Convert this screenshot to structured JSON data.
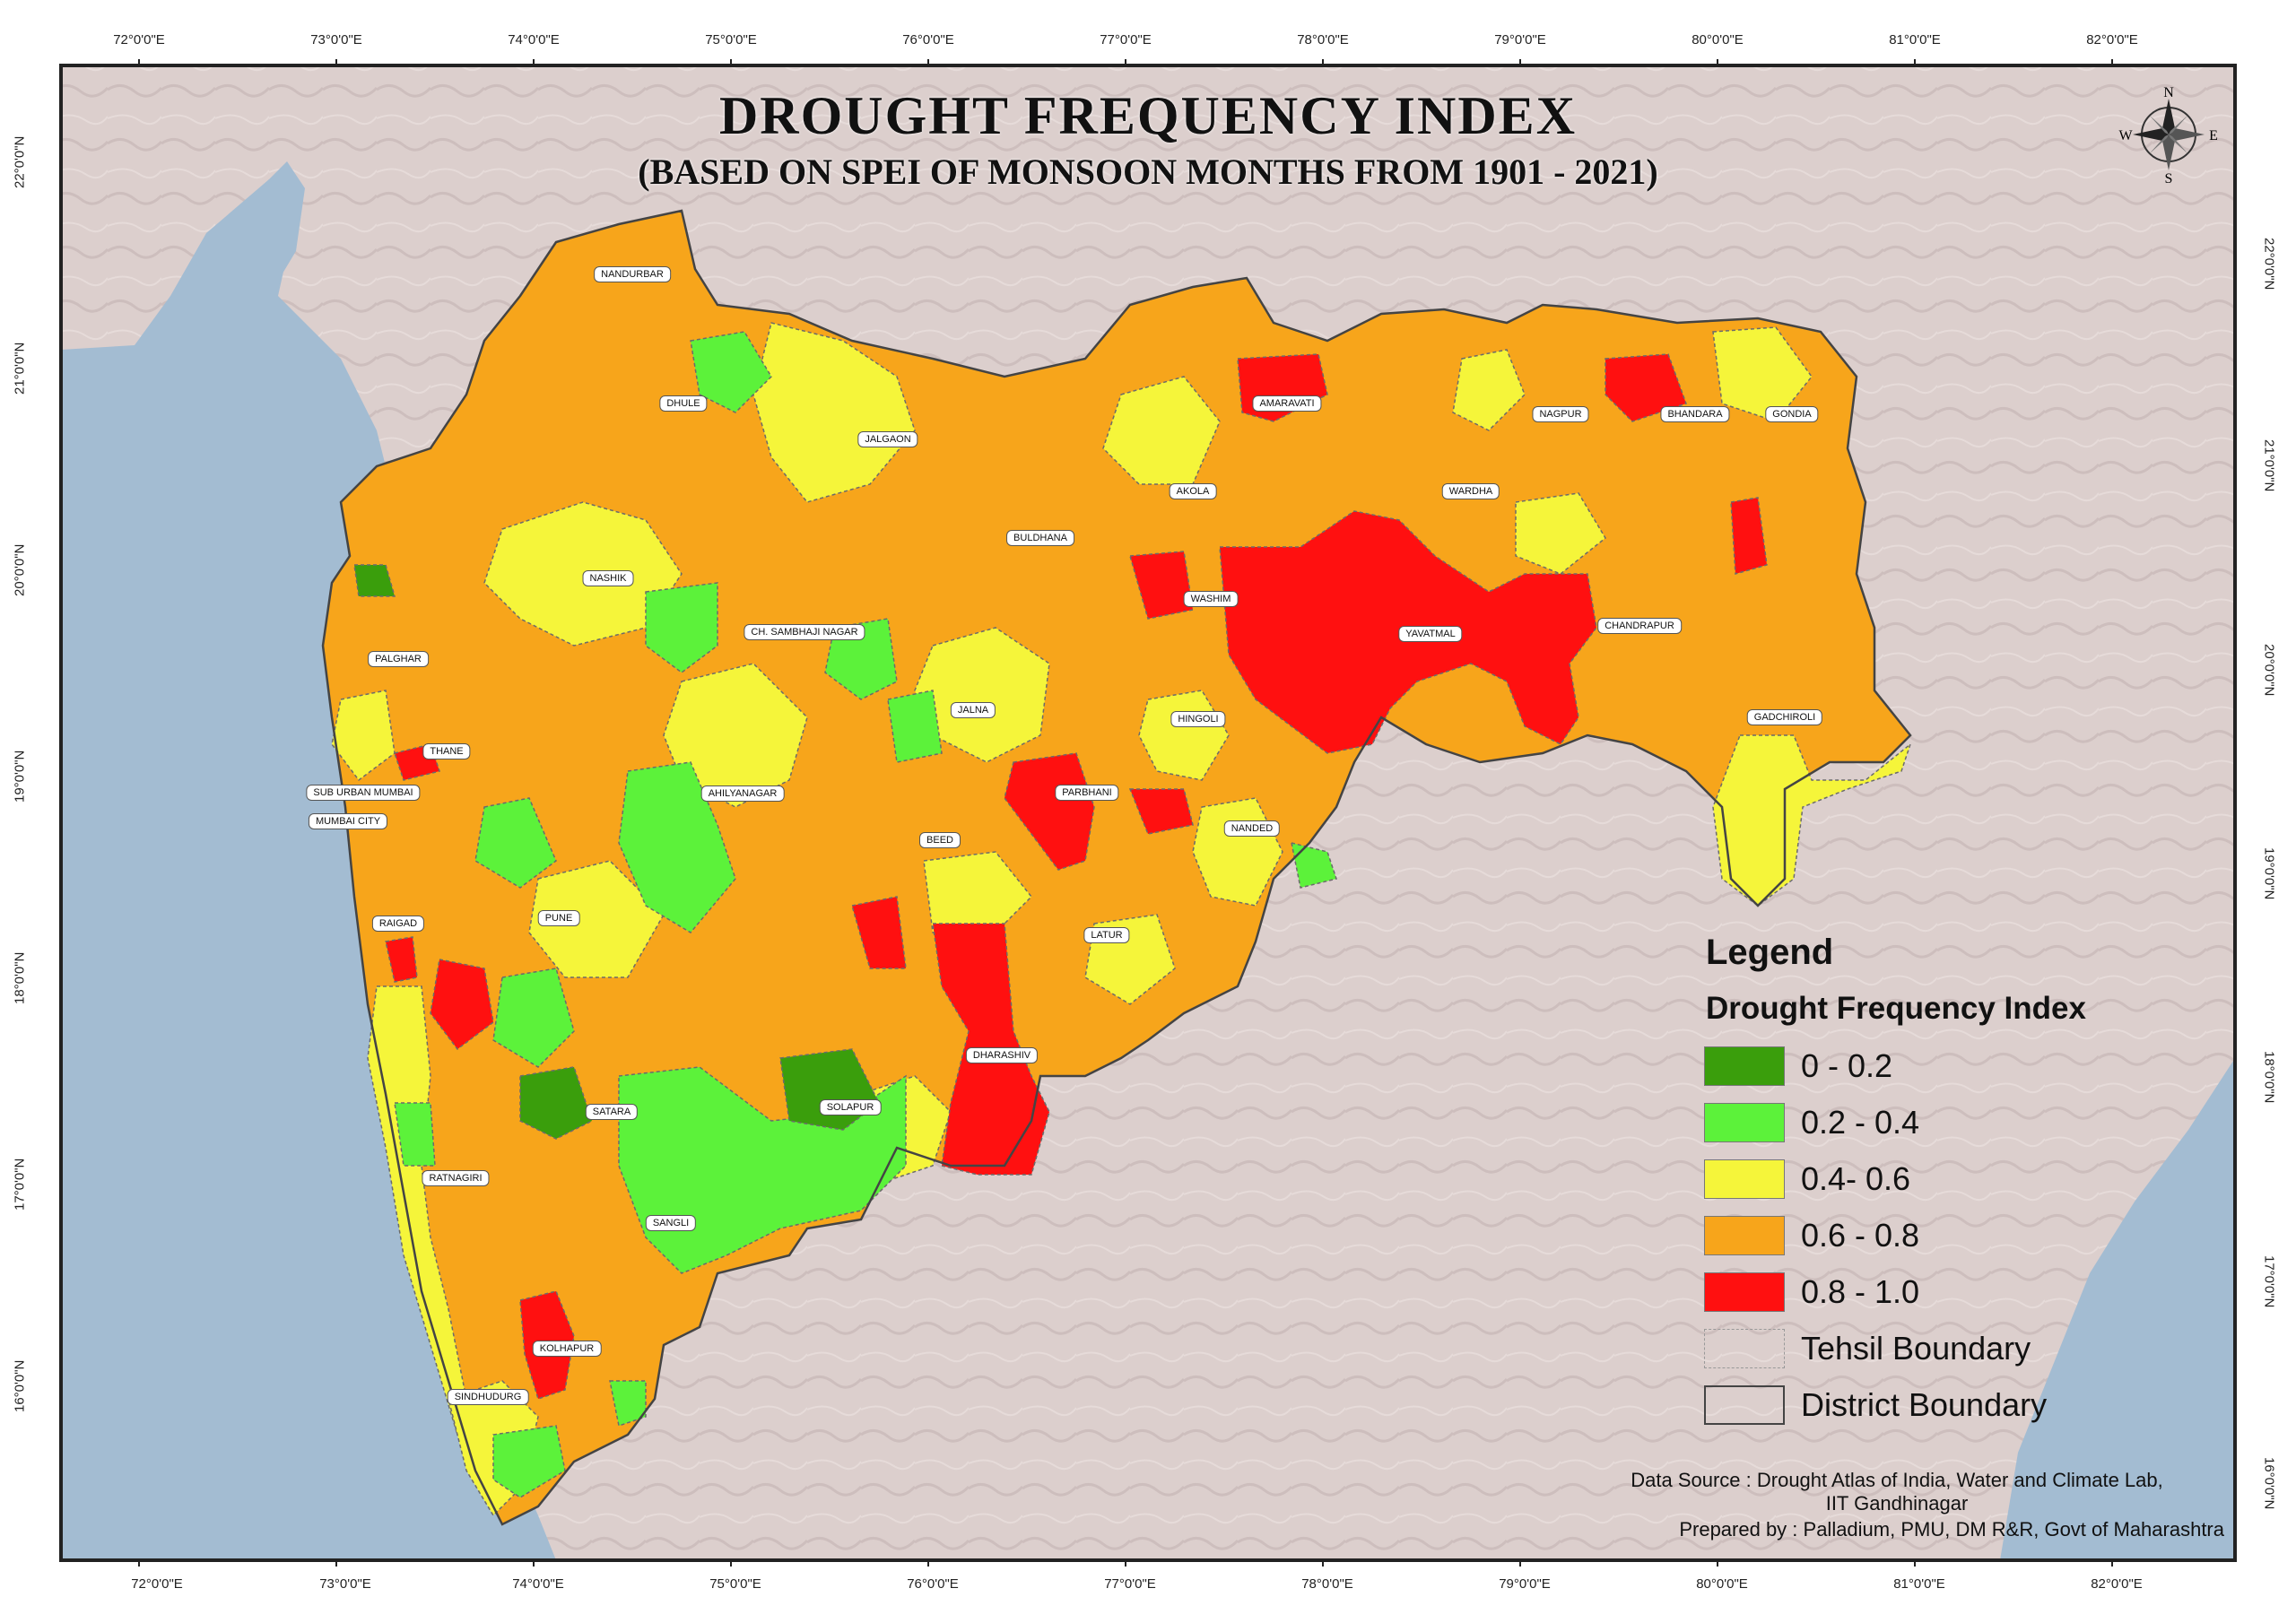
{
  "title": "DROUGHT FREQUENCY INDEX",
  "subtitle": "(BASED ON SPEI OF MONSOON MONTHS FROM 1901 - 2021)",
  "graticule": {
    "longitudes": [
      "72°0'0\"E",
      "73°0'0\"E",
      "74°0'0\"E",
      "75°0'0\"E",
      "76°0'0\"E",
      "77°0'0\"E",
      "78°0'0\"E",
      "79°0'0\"E",
      "80°0'0\"E",
      "81°0'0\"E",
      "82°0'0\"E"
    ],
    "latitudes_left": [
      "22°0'0\"N",
      "21°0'0\"N",
      "20°0'0\"N",
      "19°0'0\"N",
      "18°0'0\"N",
      "17°0'0\"N",
      "16°0'0\"N"
    ],
    "latitudes_right": [
      "22°0'0\"N",
      "21°0'0\"N",
      "20°0'0\"N",
      "19°0'0\"N",
      "18°0'0\"N",
      "17°0'0\"N",
      "16°0'0\"N"
    ]
  },
  "north_arrow": {
    "n": "N",
    "s": "S",
    "e": "E",
    "w": "W"
  },
  "districts": [
    "NANDURBAR",
    "DHULE",
    "JALGAON",
    "AMARAVATI",
    "NAGPUR",
    "BHANDARA",
    "GONDIA",
    "AKOLA",
    "WARDHA",
    "BULDHANA",
    "NASHIK",
    "WASHIM",
    "PALGHAR",
    "CH. SAMBHAJI NAGAR",
    "YAVATMAL",
    "CHANDRAPUR",
    "JALNA",
    "HINGOLI",
    "GADCHIROLI",
    "THANE",
    "SUB URBAN MUMBAI",
    "MUMBAI CITY",
    "AHILYANAGAR",
    "PARBHANI",
    "BEED",
    "NANDED",
    "RAIGAD",
    "PUNE",
    "LATUR",
    "DHARASHIV",
    "SATARA",
    "SOLAPUR",
    "RATNAGIRI",
    "SANGLI",
    "KOLHAPUR",
    "SINDHUDURG"
  ],
  "legend": {
    "title": "Legend",
    "subtitle": "Drought Frequency Index",
    "classes": [
      {
        "label": "0 - 0.2",
        "color": "#3a9e0c"
      },
      {
        "label": "0.2 - 0.4",
        "color": "#5cf23a"
      },
      {
        "label": "0.4- 0.6",
        "color": "#f5f53a"
      },
      {
        "label": "0.6 - 0.8",
        "color": "#f7a51b"
      },
      {
        "label": "0.8 - 1.0",
        "color": "#ff1010"
      }
    ],
    "boundaries": [
      {
        "label": "Tehsil Boundary"
      },
      {
        "label": "District Boundary"
      }
    ]
  },
  "credits": {
    "source_line1": "Data Source : Drought Atlas of India, Water and Climate Lab,",
    "source_line2": "IIT Gandhinagar",
    "prepared": "Prepared by : Palladium, PMU, DM R&R, Govt of Maharashtra"
  },
  "colors": {
    "sea": "#a3bcd2",
    "land": "#dccfcd",
    "frame": "#222222"
  }
}
